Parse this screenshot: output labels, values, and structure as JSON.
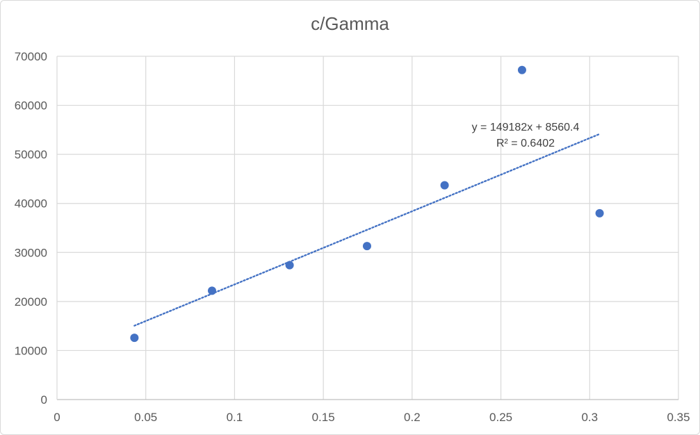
{
  "chart_data": {
    "type": "scatter",
    "title": "c/Gamma",
    "xlabel": "",
    "ylabel": "",
    "xlim": [
      0,
      0.35
    ],
    "ylim": [
      0,
      70000
    ],
    "x_ticks": [
      0,
      0.05,
      0.1,
      0.15,
      0.2,
      0.25,
      0.3,
      0.35
    ],
    "x_tick_labels": [
      "0",
      "0.05",
      "0.1",
      "0.15",
      "0.2",
      "0.25",
      "0.3",
      "0.35"
    ],
    "y_ticks": [
      0,
      10000,
      20000,
      30000,
      40000,
      50000,
      60000,
      70000
    ],
    "y_tick_labels": [
      "0",
      "10000",
      "20000",
      "30000",
      "40000",
      "50000",
      "60000",
      "70000"
    ],
    "grid": true,
    "legend": "none",
    "series": [
      {
        "color": "#4472c4",
        "points": [
          {
            "x": 0.0436,
            "y": 12600
          },
          {
            "x": 0.0873,
            "y": 22200
          },
          {
            "x": 0.131,
            "y": 27400
          },
          {
            "x": 0.1746,
            "y": 31300
          },
          {
            "x": 0.2183,
            "y": 43700
          },
          {
            "x": 0.2619,
            "y": 67200
          },
          {
            "x": 0.3056,
            "y": 38000
          }
        ]
      }
    ],
    "trendline": {
      "type": "linear",
      "style": "dotted",
      "color": "#4472c4",
      "slope": 149182,
      "intercept": 8560.4,
      "x_range": [
        0.0436,
        0.3056
      ],
      "equation_label": "y = 149182x + 8560.4",
      "r2_label": "R² = 0.6402"
    }
  }
}
